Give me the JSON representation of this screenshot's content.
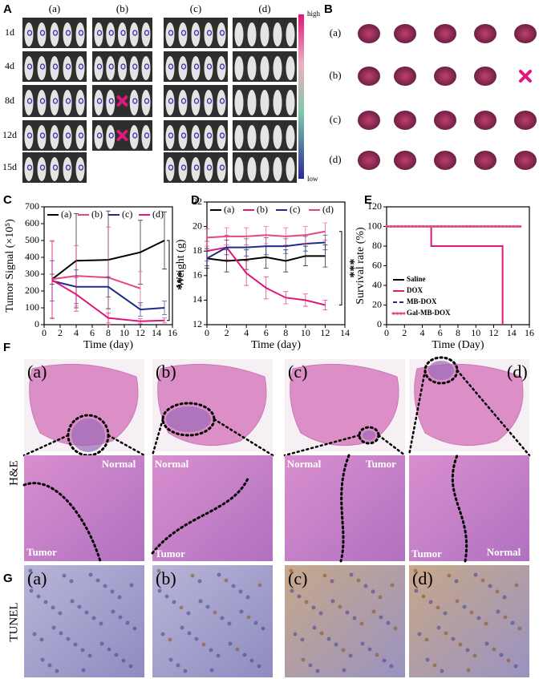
{
  "panel_labels": [
    "A",
    "B",
    "C",
    "D",
    "E",
    "F",
    "G"
  ],
  "panel_a": {
    "groups": [
      "(a)",
      "(b)",
      "(c)",
      "(d)"
    ],
    "days": [
      "1d",
      "4d",
      "8d",
      "12d",
      "15d"
    ],
    "colorbar": {
      "high": "high",
      "low": "low"
    }
  },
  "panel_b": {
    "groups": [
      "(a)",
      "(b)",
      "(c)",
      "(d)"
    ]
  },
  "chart_data": [
    {
      "type": "line",
      "x_label": "Time (day)",
      "y_label": "Tumor Signal (×10⁵)",
      "x": [
        1,
        4,
        8,
        12,
        15
      ],
      "xlim": [
        0,
        16
      ],
      "xticks": [
        0,
        2,
        4,
        6,
        8,
        10,
        12,
        14,
        16
      ],
      "ylim": [
        0,
        700
      ],
      "yticks": [
        0,
        100,
        200,
        300,
        400,
        500,
        600,
        700
      ],
      "legend": "top",
      "annotation": "***",
      "series": [
        {
          "name": "(a)",
          "color": "#000000",
          "style": "solid",
          "values": [
            270,
            380,
            385,
            430,
            500
          ],
          "errors": [
            30,
            280,
            290,
            190,
            170
          ]
        },
        {
          "name": "(b)",
          "color": "#e8467f",
          "style": "solid",
          "values": [
            270,
            290,
            280,
            215,
            null
          ],
          "errors": [
            230,
            180,
            300,
            100,
            null
          ]
        },
        {
          "name": "(c)",
          "color": "#1f2a8a",
          "style": "solid",
          "values": [
            260,
            225,
            225,
            90,
            100
          ],
          "errors": [
            120,
            100,
            60,
            40,
            40
          ]
        },
        {
          "name": "(d)",
          "color": "#e0177a",
          "style": "solid",
          "values": [
            265,
            180,
            40,
            20,
            25
          ],
          "errors": [
            230,
            100,
            30,
            15,
            15
          ]
        }
      ]
    },
    {
      "type": "line",
      "x_label": "Time (day)",
      "y_label": "Weight (g)",
      "x": [
        0,
        2,
        4,
        6,
        8,
        10,
        12
      ],
      "xlim": [
        0,
        14
      ],
      "xticks": [
        0,
        2,
        4,
        6,
        8,
        10,
        12,
        14
      ],
      "ylim": [
        12,
        22
      ],
      "yticks": [
        12,
        14,
        16,
        18,
        20,
        22
      ],
      "legend": "top",
      "annotation": "***",
      "series": [
        {
          "name": "(a)",
          "color": "#000000",
          "style": "solid",
          "values": [
            17.4,
            17.2,
            17.3,
            17.5,
            17.2,
            17.6,
            17.6
          ],
          "errors": [
            0.8,
            0.9,
            0.8,
            0.9,
            0.9,
            0.8,
            0.9
          ]
        },
        {
          "name": "(b)",
          "color": "#e0177a",
          "style": "solid",
          "values": [
            18.0,
            18.3,
            16.2,
            15.0,
            14.2,
            14.0,
            13.6
          ],
          "errors": [
            0.8,
            1.0,
            1.0,
            0.9,
            0.5,
            0.5,
            0.4
          ]
        },
        {
          "name": "(c)",
          "color": "#1f2a8a",
          "style": "solid",
          "values": [
            17.4,
            18.3,
            18.3,
            18.4,
            18.4,
            18.6,
            18.7
          ],
          "errors": [
            0.6,
            0.6,
            0.7,
            0.7,
            0.6,
            0.6,
            0.6
          ]
        },
        {
          "name": "(d)",
          "color": "#e8467f",
          "style": "solid",
          "values": [
            19.1,
            19.2,
            19.2,
            19.3,
            19.2,
            19.3,
            19.6
          ],
          "errors": [
            0.7,
            0.7,
            0.7,
            0.7,
            0.7,
            0.7,
            0.7
          ]
        }
      ]
    },
    {
      "type": "line",
      "x_label": "Time (Day)",
      "y_label": "Survival rate (%)",
      "x": [
        0,
        5,
        5,
        13,
        13,
        15
      ],
      "xlim": [
        0,
        16
      ],
      "xticks": [
        0,
        2,
        4,
        6,
        8,
        10,
        12,
        14,
        16
      ],
      "ylim": [
        0,
        120
      ],
      "yticks": [
        0,
        20,
        40,
        60,
        80,
        100,
        120
      ],
      "legend": "lower left",
      "series": [
        {
          "name": "Saline",
          "color": "#000000",
          "style": "solid",
          "values": [
            100,
            100,
            100,
            100,
            100,
            100
          ]
        },
        {
          "name": "DOX",
          "color": "#e0177a",
          "style": "solid",
          "values": [
            100,
            100,
            80,
            80,
            0,
            null
          ]
        },
        {
          "name": "MB-DOX",
          "color": "#1f2a8a",
          "style": "dashed",
          "values": [
            100,
            100,
            100,
            100,
            100,
            100
          ]
        },
        {
          "name": "Gal-MB-DOX",
          "color": "#e8467f",
          "style": "dotted",
          "values": [
            100,
            100,
            100,
            100,
            100,
            100
          ]
        }
      ]
    }
  ],
  "panel_f": {
    "groups": [
      "(a)",
      "(b)",
      "(c)",
      "(d)"
    ],
    "row_label": "H&E",
    "normal": "Normal",
    "tumor": "Tumor"
  },
  "panel_g": {
    "groups": [
      "(a)",
      "(b)",
      "(c)",
      "(d)"
    ],
    "row_label": "TUNEL"
  }
}
